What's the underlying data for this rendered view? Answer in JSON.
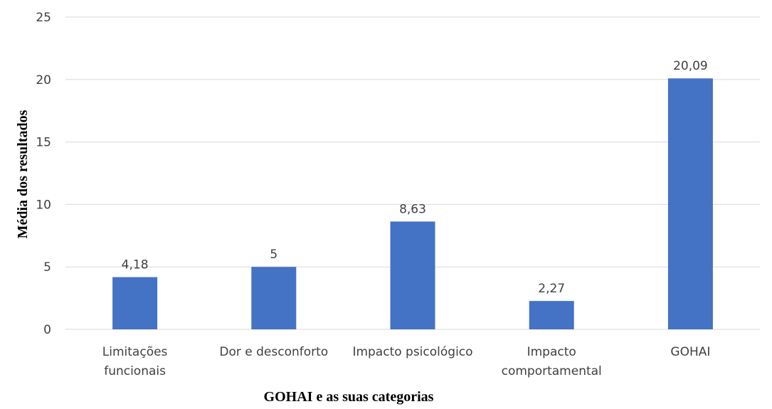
{
  "chart_data": {
    "type": "bar",
    "categories": [
      [
        "Limitações",
        "funcionais"
      ],
      [
        "Dor e desconforto"
      ],
      [
        "Impacto psicológico"
      ],
      [
        "Impacto",
        "comportamental"
      ],
      [
        "GOHAI"
      ]
    ],
    "values": [
      4.18,
      5,
      8.63,
      2.27,
      20.09
    ],
    "data_labels": [
      "4,18",
      "5",
      "8,63",
      "2,27",
      "20,09"
    ],
    "title": "",
    "xlabel": "GOHAI e as suas categorias",
    "ylabel": "Média dos resultados",
    "ylim": [
      0,
      25
    ],
    "yticks": [
      0,
      5,
      10,
      15,
      20,
      25
    ],
    "grid": true,
    "colors": {
      "bar": "#4472C4",
      "grid": "#D9D9D9",
      "text": "#404040"
    }
  }
}
